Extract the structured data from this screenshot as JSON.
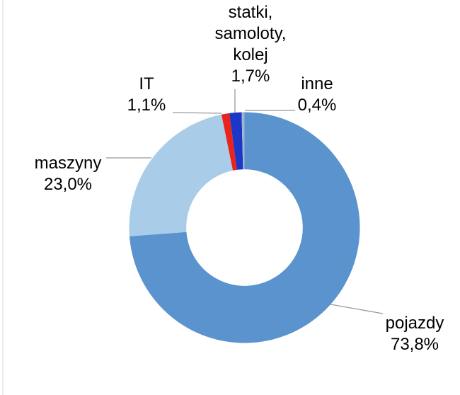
{
  "page": {
    "background": "#ffffff"
  },
  "chart_data": {
    "type": "pie",
    "subtype": "donut",
    "title": "",
    "unit": "%",
    "decimal_separator": ",",
    "total": 100,
    "start_angle_deg": 0,
    "clockwise": true,
    "inner_radius_ratio": 0.505,
    "label_color": "#000000",
    "leader_line_color": "#999999",
    "slices": [
      {
        "name": "pojazdy",
        "value": 73.8,
        "label": "pojazdy",
        "pct_label": "73,8%",
        "color": "#5B93CE"
      },
      {
        "name": "maszyny",
        "value": 23.0,
        "label": "maszyny",
        "pct_label": "23,0%",
        "color": "#A9CDE9"
      },
      {
        "name": "IT",
        "value": 1.1,
        "label": "IT",
        "pct_label": "1,1%",
        "color": "#E8241D"
      },
      {
        "name": "statki, samoloty, kolej",
        "value": 1.7,
        "label_lines": [
          "statki,",
          "samoloty,",
          "kolej"
        ],
        "pct_label": "1,7%",
        "color": "#1C36C8"
      },
      {
        "name": "inne",
        "value": 0.4,
        "label": "inne",
        "pct_label": "0,4%",
        "color": "#9EB6D0"
      }
    ]
  }
}
